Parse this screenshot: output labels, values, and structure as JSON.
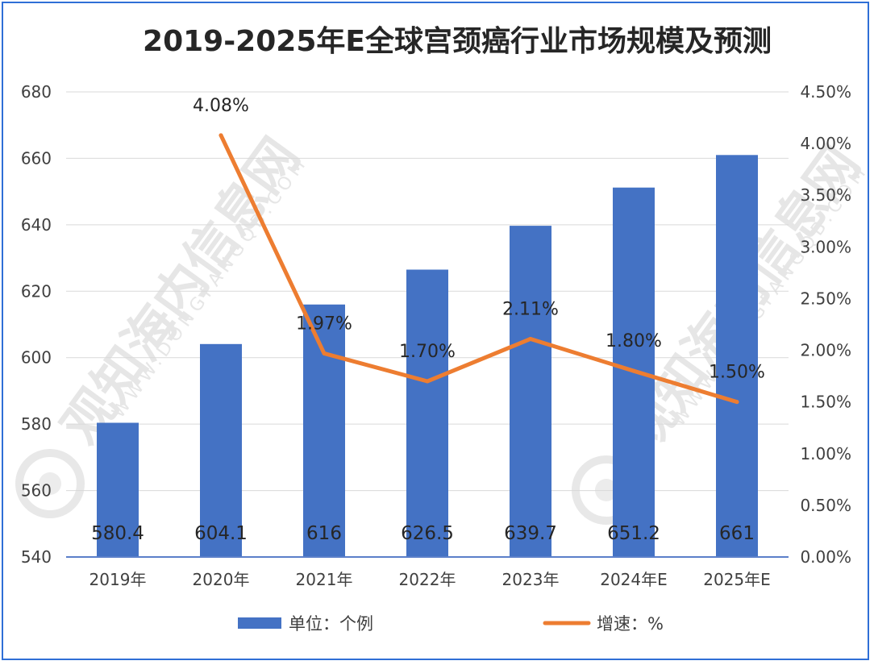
{
  "chart_data": {
    "type": "bar",
    "title": "2019-2025年E全球宫颈癌行业市场规模及预测",
    "categories": [
      "2019年",
      "2020年",
      "2021年",
      "2022年",
      "2023年",
      "2024年E",
      "2025年E"
    ],
    "series": [
      {
        "name": "单位：个例",
        "type": "bar",
        "axis": "left",
        "color": "#4472c4",
        "values": [
          580.4,
          604.1,
          616,
          626.5,
          639.7,
          651.2,
          661
        ],
        "labels": [
          "580.4",
          "604.1",
          "616",
          "626.5",
          "639.7",
          "651.2",
          "661"
        ]
      },
      {
        "name": "增速：%",
        "type": "line",
        "axis": "right",
        "color": "#ed7d31",
        "values": [
          null,
          4.08,
          1.97,
          1.7,
          2.11,
          1.8,
          1.5
        ],
        "labels": [
          "",
          "4.08%",
          "1.97%",
          "1.70%",
          "2.11%",
          "1.80%",
          "1.50%"
        ]
      }
    ],
    "y_left": {
      "range": [
        540,
        680
      ],
      "ticks": [
        "540",
        "560",
        "580",
        "600",
        "620",
        "640",
        "660",
        "680"
      ]
    },
    "y_right": {
      "range": [
        0,
        4.5
      ],
      "ticks": [
        "0.00%",
        "0.50%",
        "1.00%",
        "1.50%",
        "2.00%",
        "2.50%",
        "3.00%",
        "3.50%",
        "4.00%",
        "4.50%"
      ]
    },
    "grid": true,
    "legend_position": "bottom"
  },
  "watermark": {
    "text": "观知海内信息网",
    "domain": "WWW.DONGFANGQB.COM"
  }
}
